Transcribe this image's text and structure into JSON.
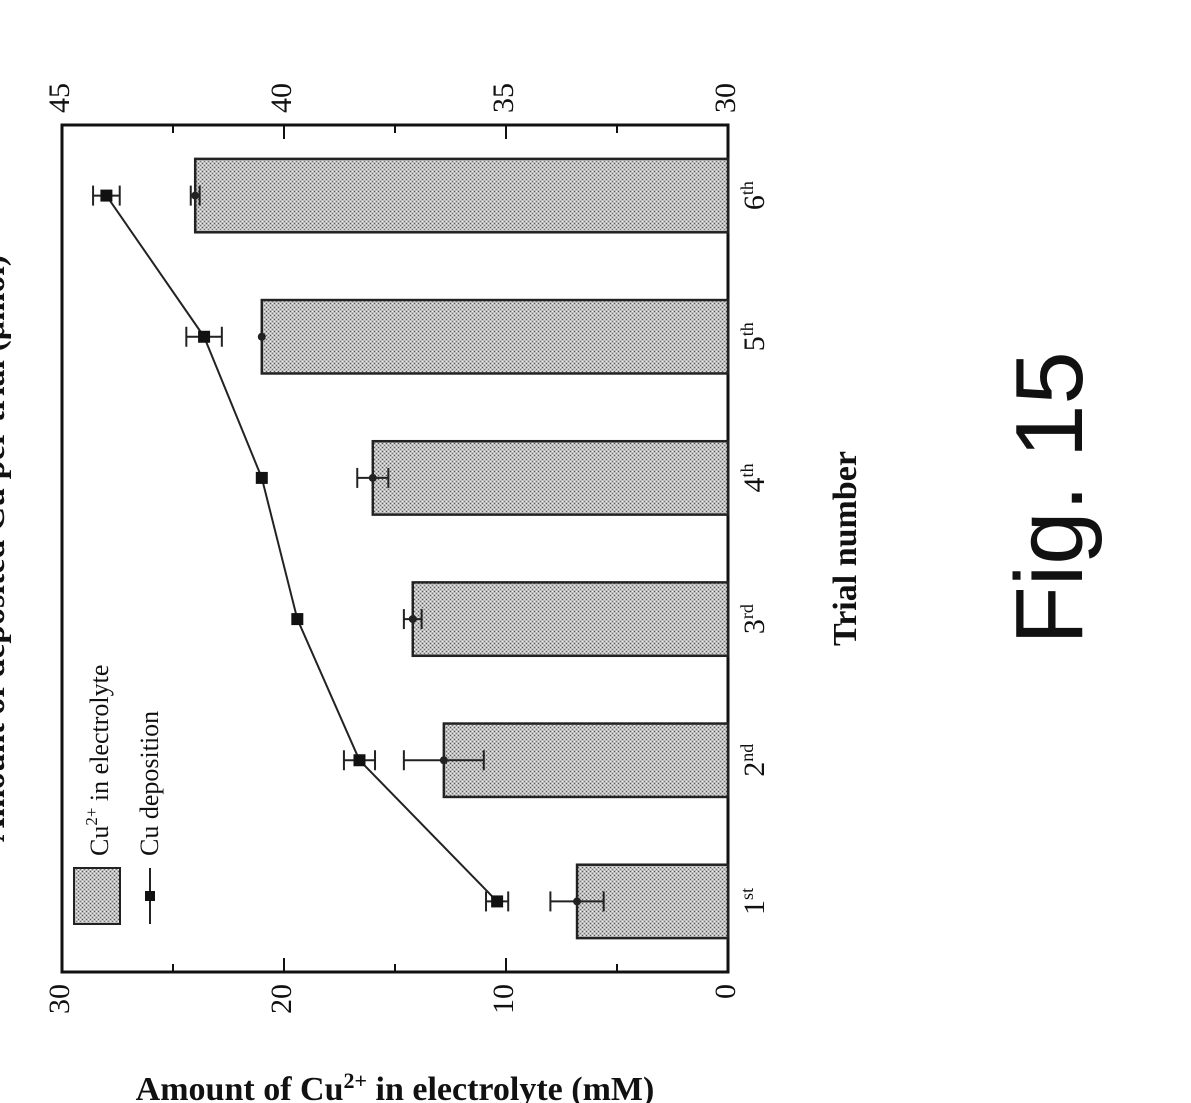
{
  "figure_label": "Fig. 15",
  "chart_data": {
    "type": "bar",
    "categories": [
      "1st",
      "2nd",
      "3rd",
      "4th",
      "5th",
      "6th"
    ],
    "tick_labels": [
      {
        "base": "1",
        "sup": "st"
      },
      {
        "base": "2",
        "sup": "nd"
      },
      {
        "base": "3",
        "sup": "rd"
      },
      {
        "base": "4",
        "sup": "th"
      },
      {
        "base": "5",
        "sup": "th"
      },
      {
        "base": "6",
        "sup": "th"
      }
    ],
    "xlabel": "Trial number",
    "ylabel": {
      "pre": "Amount of Cu",
      "sup": "2+",
      "post": " in electrolyte (mM)"
    },
    "y2label": "Amount of deposited Cu per trial (μmol)",
    "ylim": [
      0,
      30
    ],
    "yticks": [
      0,
      10,
      20,
      30
    ],
    "y2lim": [
      30,
      45
    ],
    "y2ticks": [
      30,
      35,
      40,
      45
    ],
    "series": [
      {
        "name": {
          "pre": "Cu",
          "sup": "2+",
          "post": " in electrolyte"
        },
        "kind": "bar",
        "axis": "left",
        "values": [
          6.8,
          12.8,
          14.2,
          16.0,
          21.0,
          24.0
        ],
        "errors": [
          1.2,
          1.8,
          0.4,
          0.7,
          0.0,
          0.2
        ]
      },
      {
        "name": "Cu deposition",
        "kind": "line",
        "axis": "right",
        "values": [
          35.2,
          38.3,
          39.7,
          40.5,
          41.8,
          44.0
        ],
        "errors": [
          0.25,
          0.35,
          0.0,
          0.0,
          0.4,
          0.3
        ]
      }
    ],
    "legend": "top-left",
    "grid": false,
    "orientation": "rotated 90° counter-clockwise"
  }
}
